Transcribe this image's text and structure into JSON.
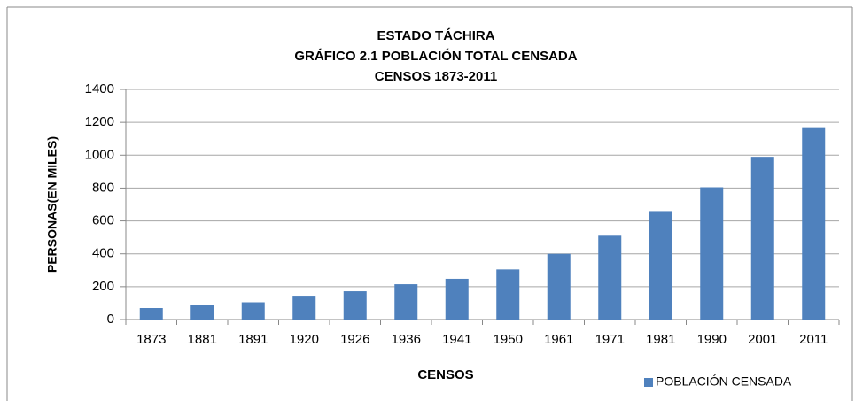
{
  "chart_data": {
    "type": "bar",
    "title": [
      "ESTADO TÁCHIRA",
      "GRÁFICO 2.1 POBLACIÓN  TOTAL CENSADA",
      "CENSOS 1873-2011"
    ],
    "xlabel": "CENSOS",
    "ylabel": "PERSONAS(EN MILES)",
    "categories": [
      "1873",
      "1881",
      "1891",
      "1920",
      "1926",
      "1936",
      "1941",
      "1950",
      "1961",
      "1971",
      "1981",
      "1990",
      "2001",
      "2011"
    ],
    "series": [
      {
        "name": "POBLACIÓN CENSADA",
        "color": "#4f81bd",
        "values": [
          70,
          90,
          105,
          145,
          172,
          215,
          248,
          305,
          400,
          510,
          660,
          805,
          990,
          1165
        ]
      }
    ],
    "ylim": [
      0,
      1400
    ],
    "yticks": [
      0,
      200,
      400,
      600,
      800,
      1000,
      1200,
      1400
    ],
    "grid": true,
    "legend": "bottom-right"
  }
}
